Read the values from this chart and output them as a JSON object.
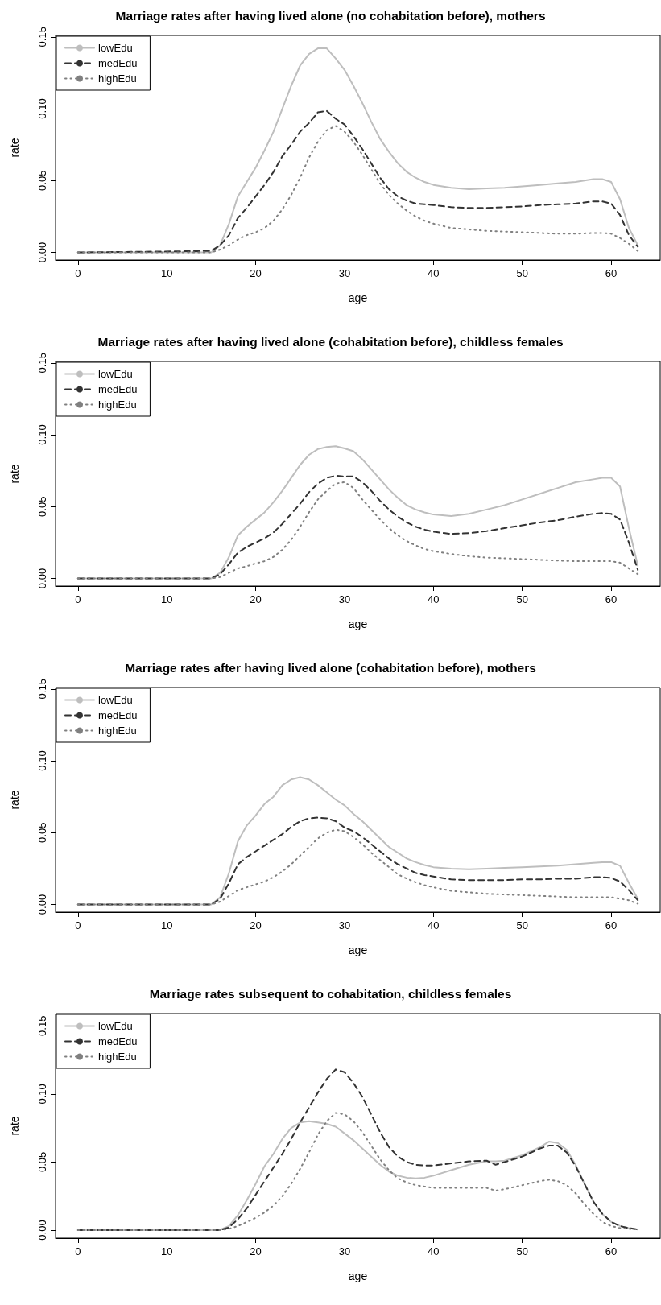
{
  "chart_data": [
    {
      "type": "line",
      "title": "Marriage rates after having lived alone (no cohabitation before), mothers",
      "xlabel": "age",
      "ylabel": "rate",
      "legend": "top left",
      "grid": false,
      "xlim": [
        -2.52,
        65.52
      ],
      "xticks": [
        0,
        10,
        20,
        30,
        40,
        50,
        60
      ],
      "ylim": [
        -0.0053,
        0.151
      ],
      "yticks": [
        {
          "value": 0,
          "label": "0.00"
        },
        {
          "value": 0.05,
          "label": "0.05"
        },
        {
          "value": 0.1,
          "label": "0.10"
        },
        {
          "value": 0.15,
          "label": "0.15"
        }
      ],
      "x": [
        0,
        15,
        16,
        17,
        18,
        19,
        20,
        21,
        22,
        23,
        24,
        25,
        26,
        27,
        28,
        29,
        30,
        31,
        32,
        33,
        34,
        35,
        36,
        37,
        38,
        39,
        40,
        42,
        44,
        46,
        48,
        50,
        52,
        54,
        56,
        58,
        59,
        60,
        61,
        62,
        63
      ],
      "series": [
        {
          "name": "lowEdu",
          "color": "#bebebe",
          "line_style": "solid",
          "values": [
            0,
            0,
            0.005,
            0.02,
            0.039,
            0.049,
            0.059,
            0.071,
            0.084,
            0.1,
            0.116,
            0.13,
            0.138,
            0.142,
            0.142,
            0.135,
            0.127,
            0.116,
            0.104,
            0.091,
            0.079,
            0.07,
            0.062,
            0.056,
            0.052,
            0.049,
            0.047,
            0.045,
            0.044,
            0.0445,
            0.045,
            0.046,
            0.047,
            0.048,
            0.049,
            0.051,
            0.051,
            0.049,
            0.037,
            0.017,
            0.005
          ]
        },
        {
          "name": "medEdu",
          "color": "#333333",
          "line_style": "dashed",
          "values": [
            0,
            0.001,
            0.005,
            0.012,
            0.024,
            0.031,
            0.039,
            0.047,
            0.056,
            0.067,
            0.075,
            0.084,
            0.09,
            0.0975,
            0.0985,
            0.093,
            0.089,
            0.081,
            0.072,
            0.062,
            0.052,
            0.044,
            0.039,
            0.036,
            0.034,
            0.0335,
            0.033,
            0.0315,
            0.031,
            0.031,
            0.0315,
            0.032,
            0.033,
            0.0335,
            0.034,
            0.0355,
            0.0355,
            0.034,
            0.026,
            0.012,
            0.004
          ]
        },
        {
          "name": "highEdu",
          "color": "#808080",
          "line_style": "dotted",
          "values": [
            0,
            0,
            0.002,
            0.005,
            0.009,
            0.012,
            0.014,
            0.017,
            0.022,
            0.03,
            0.04,
            0.052,
            0.066,
            0.077,
            0.085,
            0.088,
            0.084,
            0.077,
            0.068,
            0.058,
            0.048,
            0.04,
            0.034,
            0.029,
            0.025,
            0.022,
            0.02,
            0.017,
            0.016,
            0.015,
            0.0145,
            0.014,
            0.0135,
            0.013,
            0.013,
            0.0135,
            0.0135,
            0.013,
            0.01,
            0.006,
            0.001
          ]
        }
      ]
    },
    {
      "type": "line",
      "title": "Marriage rates after having lived alone (cohabitation before), childless females",
      "xlabel": "age",
      "ylabel": "rate",
      "legend": "top left",
      "grid": false,
      "xlim": [
        -2.52,
        65.52
      ],
      "xticks": [
        0,
        10,
        20,
        30,
        40,
        50,
        60
      ],
      "ylim": [
        -0.0053,
        0.151
      ],
      "yticks": [
        {
          "value": 0,
          "label": "0.00"
        },
        {
          "value": 0.05,
          "label": "0.05"
        },
        {
          "value": 0.1,
          "label": "0.10"
        },
        {
          "value": 0.15,
          "label": "0.15"
        }
      ],
      "x": [
        0,
        15,
        16,
        17,
        18,
        19,
        20,
        21,
        22,
        23,
        24,
        25,
        26,
        27,
        28,
        29,
        30,
        31,
        32,
        33,
        34,
        35,
        36,
        37,
        38,
        39,
        40,
        42,
        44,
        46,
        48,
        50,
        52,
        54,
        56,
        58,
        59,
        60,
        61,
        62,
        63
      ],
      "series": [
        {
          "name": "lowEdu",
          "color": "#bebebe",
          "line_style": "solid",
          "values": [
            0,
            0,
            0.004,
            0.015,
            0.03,
            0.036,
            0.041,
            0.046,
            0.053,
            0.061,
            0.07,
            0.079,
            0.086,
            0.09,
            0.0915,
            0.092,
            0.0905,
            0.0885,
            0.083,
            0.076,
            0.069,
            0.062,
            0.056,
            0.051,
            0.048,
            0.046,
            0.0445,
            0.0435,
            0.045,
            0.048,
            0.051,
            0.055,
            0.059,
            0.063,
            0.067,
            0.069,
            0.07,
            0.07,
            0.064,
            0.035,
            0.009
          ]
        },
        {
          "name": "medEdu",
          "color": "#333333",
          "line_style": "dashed",
          "values": [
            0,
            0,
            0.003,
            0.01,
            0.018,
            0.022,
            0.025,
            0.028,
            0.032,
            0.038,
            0.045,
            0.052,
            0.06,
            0.066,
            0.07,
            0.0715,
            0.071,
            0.071,
            0.067,
            0.061,
            0.054,
            0.048,
            0.043,
            0.039,
            0.036,
            0.034,
            0.0325,
            0.031,
            0.0315,
            0.033,
            0.035,
            0.037,
            0.039,
            0.0405,
            0.043,
            0.045,
            0.0455,
            0.045,
            0.041,
            0.025,
            0.006
          ]
        },
        {
          "name": "highEdu",
          "color": "#808080",
          "line_style": "dotted",
          "values": [
            0,
            0,
            0.001,
            0.004,
            0.007,
            0.0085,
            0.0105,
            0.012,
            0.015,
            0.02,
            0.027,
            0.036,
            0.046,
            0.055,
            0.061,
            0.066,
            0.067,
            0.063,
            0.055,
            0.048,
            0.041,
            0.035,
            0.03,
            0.026,
            0.023,
            0.0205,
            0.019,
            0.017,
            0.0155,
            0.0145,
            0.014,
            0.0135,
            0.013,
            0.0125,
            0.012,
            0.012,
            0.012,
            0.012,
            0.011,
            0.007,
            0.003
          ]
        }
      ]
    },
    {
      "type": "line",
      "title": "Marriage rates after having lived alone (cohabitation before), mothers",
      "xlabel": "age",
      "ylabel": "rate",
      "legend": "top left",
      "grid": false,
      "xlim": [
        -2.52,
        65.52
      ],
      "xticks": [
        0,
        10,
        20,
        30,
        40,
        50,
        60
      ],
      "ylim": [
        -0.0053,
        0.151
      ],
      "yticks": [
        {
          "value": 0,
          "label": "0.00"
        },
        {
          "value": 0.05,
          "label": "0.05"
        },
        {
          "value": 0.1,
          "label": "0.10"
        },
        {
          "value": 0.15,
          "label": "0.15"
        }
      ],
      "x": [
        0,
        15,
        16,
        17,
        18,
        19,
        20,
        21,
        22,
        23,
        24,
        25,
        26,
        27,
        28,
        29,
        30,
        31,
        32,
        33,
        34,
        35,
        36,
        37,
        38,
        39,
        40,
        42,
        44,
        46,
        48,
        50,
        52,
        54,
        56,
        58,
        59,
        60,
        61,
        62,
        63
      ],
      "series": [
        {
          "name": "lowEdu",
          "color": "#bebebe",
          "line_style": "solid",
          "values": [
            0,
            0,
            0.005,
            0.022,
            0.044,
            0.055,
            0.062,
            0.07,
            0.075,
            0.083,
            0.087,
            0.0885,
            0.087,
            0.083,
            0.078,
            0.073,
            0.069,
            0.063,
            0.058,
            0.052,
            0.046,
            0.04,
            0.036,
            0.032,
            0.0295,
            0.0275,
            0.026,
            0.025,
            0.0245,
            0.025,
            0.0255,
            0.026,
            0.0265,
            0.027,
            0.028,
            0.029,
            0.0295,
            0.0295,
            0.027,
            0.015,
            0.004
          ]
        },
        {
          "name": "medEdu",
          "color": "#333333",
          "line_style": "dashed",
          "values": [
            0,
            0,
            0.004,
            0.015,
            0.028,
            0.033,
            0.037,
            0.041,
            0.045,
            0.049,
            0.054,
            0.058,
            0.06,
            0.0605,
            0.06,
            0.058,
            0.0535,
            0.051,
            0.047,
            0.042,
            0.037,
            0.032,
            0.028,
            0.025,
            0.022,
            0.0205,
            0.0195,
            0.0175,
            0.017,
            0.017,
            0.017,
            0.0175,
            0.0175,
            0.018,
            0.018,
            0.019,
            0.019,
            0.0185,
            0.016,
            0.01,
            0.003
          ]
        },
        {
          "name": "highEdu",
          "color": "#808080",
          "line_style": "dotted",
          "values": [
            0,
            0,
            0.002,
            0.006,
            0.01,
            0.012,
            0.014,
            0.016,
            0.019,
            0.023,
            0.028,
            0.034,
            0.04,
            0.046,
            0.05,
            0.052,
            0.051,
            0.047,
            0.042,
            0.036,
            0.031,
            0.026,
            0.021,
            0.018,
            0.0155,
            0.0135,
            0.012,
            0.0095,
            0.0085,
            0.0075,
            0.007,
            0.0065,
            0.006,
            0.0055,
            0.005,
            0.005,
            0.005,
            0.005,
            0.004,
            0.003,
            0.0005
          ]
        }
      ]
    },
    {
      "type": "line",
      "title": "Marriage rates subsequent to cohabitation, childless females",
      "xlabel": "age",
      "ylabel": "rate",
      "legend": "top left",
      "grid": false,
      "xlim": [
        -2.52,
        65.52
      ],
      "xticks": [
        0,
        10,
        20,
        30,
        40,
        50,
        60
      ],
      "ylim": [
        -0.0059,
        0.159
      ],
      "yticks": [
        {
          "value": 0,
          "label": "0.00"
        },
        {
          "value": 0.05,
          "label": "0.05"
        },
        {
          "value": 0.1,
          "label": "0.10"
        },
        {
          "value": 0.15,
          "label": "0.15"
        }
      ],
      "x": [
        0,
        15,
        16,
        17,
        18,
        19,
        20,
        21,
        22,
        23,
        24,
        25,
        26,
        27,
        28,
        29,
        30,
        31,
        32,
        33,
        34,
        35,
        36,
        37,
        38,
        39,
        40,
        42,
        44,
        46,
        47,
        48,
        50,
        52,
        53,
        54,
        55,
        56,
        57,
        58,
        59,
        60,
        61,
        62,
        63
      ],
      "series": [
        {
          "name": "lowEdu",
          "color": "#bebebe",
          "line_style": "solid",
          "values": [
            0,
            0,
            0.0003,
            0.003,
            0.011,
            0.022,
            0.034,
            0.047,
            0.056,
            0.067,
            0.075,
            0.079,
            0.08,
            0.079,
            0.078,
            0.076,
            0.071,
            0.066,
            0.06,
            0.054,
            0.048,
            0.043,
            0.04,
            0.0385,
            0.038,
            0.0385,
            0.04,
            0.044,
            0.048,
            0.0505,
            0.0505,
            0.051,
            0.055,
            0.061,
            0.065,
            0.064,
            0.059,
            0.048,
            0.034,
            0.021,
            0.012,
            0.006,
            0.003,
            0.0015,
            0.0005
          ]
        },
        {
          "name": "medEdu",
          "color": "#333333",
          "line_style": "dashed",
          "values": [
            0,
            0,
            0,
            0.002,
            0.008,
            0.016,
            0.026,
            0.036,
            0.046,
            0.056,
            0.067,
            0.079,
            0.09,
            0.101,
            0.111,
            0.118,
            0.116,
            0.108,
            0.098,
            0.085,
            0.072,
            0.061,
            0.054,
            0.05,
            0.048,
            0.0475,
            0.0475,
            0.049,
            0.0505,
            0.051,
            0.048,
            0.05,
            0.054,
            0.06,
            0.062,
            0.062,
            0.057,
            0.047,
            0.034,
            0.021,
            0.012,
            0.006,
            0.003,
            0.0015,
            0.0005
          ]
        },
        {
          "name": "highEdu",
          "color": "#808080",
          "line_style": "dotted",
          "values": [
            0,
            0,
            0,
            0.001,
            0.003,
            0.006,
            0.009,
            0.013,
            0.018,
            0.025,
            0.034,
            0.045,
            0.057,
            0.07,
            0.08,
            0.086,
            0.085,
            0.08,
            0.072,
            0.062,
            0.052,
            0.044,
            0.038,
            0.035,
            0.033,
            0.032,
            0.031,
            0.031,
            0.031,
            0.031,
            0.029,
            0.03,
            0.033,
            0.036,
            0.037,
            0.036,
            0.033,
            0.027,
            0.019,
            0.012,
            0.006,
            0.003,
            0.0015,
            0.001,
            0.0005
          ]
        }
      ]
    }
  ]
}
